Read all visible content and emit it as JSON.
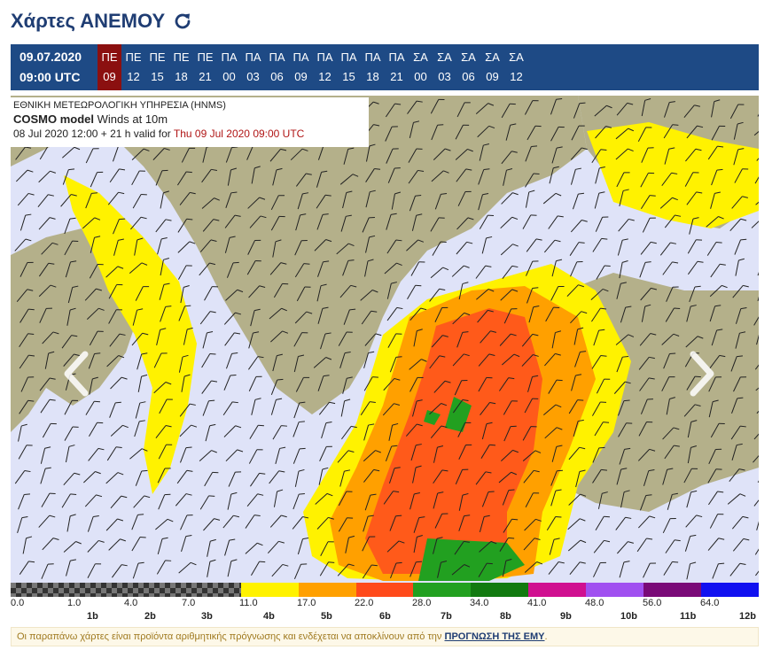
{
  "page": {
    "title": "Χάρτες ΑΝΕΜΟΥ"
  },
  "timebar": {
    "date": "09.07.2020",
    "time": "09:00 UTC",
    "active_index": 0,
    "columns": [
      {
        "day": "ΠΕ",
        "hour": "09"
      },
      {
        "day": "ΠΕ",
        "hour": "12"
      },
      {
        "day": "ΠΕ",
        "hour": "15"
      },
      {
        "day": "ΠΕ",
        "hour": "18"
      },
      {
        "day": "ΠΕ",
        "hour": "21"
      },
      {
        "day": "ΠΑ",
        "hour": "00"
      },
      {
        "day": "ΠΑ",
        "hour": "03"
      },
      {
        "day": "ΠΑ",
        "hour": "06"
      },
      {
        "day": "ΠΑ",
        "hour": "09"
      },
      {
        "day": "ΠΑ",
        "hour": "12"
      },
      {
        "day": "ΠΑ",
        "hour": "15"
      },
      {
        "day": "ΠΑ",
        "hour": "18"
      },
      {
        "day": "ΠΑ",
        "hour": "21"
      },
      {
        "day": "ΣΑ",
        "hour": "00"
      },
      {
        "day": "ΣΑ",
        "hour": "03"
      },
      {
        "day": "ΣΑ",
        "hour": "06"
      },
      {
        "day": "ΣΑ",
        "hour": "09"
      },
      {
        "day": "ΣΑ",
        "hour": "12"
      }
    ]
  },
  "map_info": {
    "agency": "ΕΘΝΙΚΗ ΜΕΤΕΩΡΟΛΟΓΙΚΗ ΥΠΗΡΕΣΙΑ (HNMS)",
    "model": "COSMO model",
    "field": "Winds at 10m",
    "run": "08 Jul 2020 12:00 + 21 h valid for",
    "valid": "Thu 09 Jul 2020 09:00 UTC"
  },
  "map_colors": {
    "sea": "#dfe3f8",
    "land": "#b4b08a",
    "yellow": "#fff200",
    "orange": "#ffa000",
    "red_orange": "#ff5a1a",
    "green": "#22a020"
  },
  "scale": {
    "segments": [
      {
        "color": "checker",
        "flex": 4
      },
      {
        "color": "#fff200",
        "flex": 1
      },
      {
        "color": "#ffa000",
        "flex": 1
      },
      {
        "color": "#ff4a1a",
        "flex": 1
      },
      {
        "color": "#22a020",
        "flex": 1
      },
      {
        "color": "#127a10",
        "flex": 1
      },
      {
        "color": "#d01090",
        "flex": 1
      },
      {
        "color": "#a050f0",
        "flex": 1
      },
      {
        "color": "#7a0a78",
        "flex": 1
      },
      {
        "color": "#1010f0",
        "flex": 1
      }
    ],
    "values": [
      "0.0",
      "1.0",
      "4.0",
      "7.0",
      "11.0",
      "17.0",
      "22.0",
      "28.0",
      "34.0",
      "41.0",
      "48.0",
      "56.0",
      "64.0"
    ],
    "beaufort": [
      "1b",
      "2b",
      "3b",
      "4b",
      "5b",
      "6b",
      "7b",
      "8b",
      "9b",
      "10b",
      "11b",
      "12b"
    ]
  },
  "note": {
    "text": "Οι παραπάνω χάρτες είναι προϊόντα αριθμητικής πρόγνωσης και ενδέχεται να αποκλίνουν από την",
    "link": "ΠΡΟΓΝΩΣΗ ΤΗΣ ΕΜΥ",
    "end": "."
  }
}
